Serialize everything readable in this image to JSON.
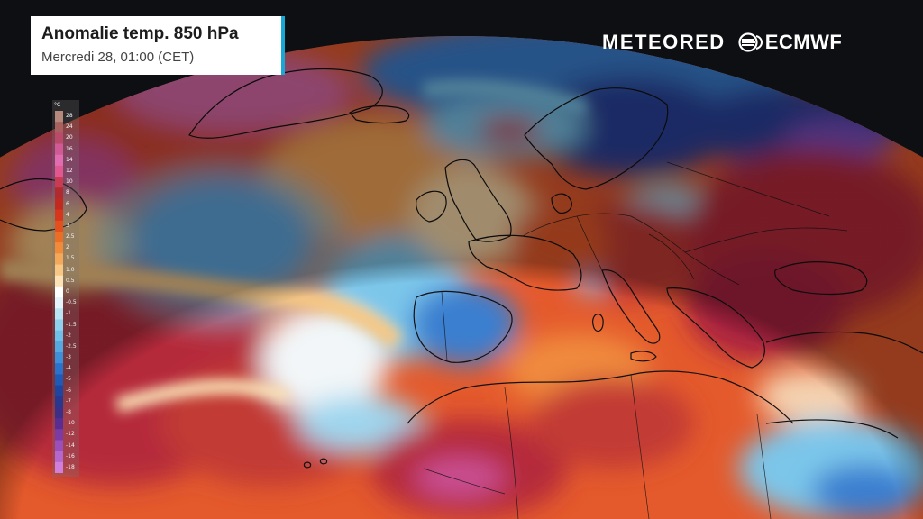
{
  "header": {
    "title": "Anomalie temp. 850 hPa",
    "subtitle": "Mercredi 28, 01:00 (CET)"
  },
  "branding": {
    "meteored": "METEORED",
    "ecmwf": "ECMWF",
    "ecmwf_icon": "ecmwf-swirl-icon"
  },
  "legend": {
    "unit": "°C",
    "ticks": [
      "28",
      "24",
      "20",
      "16",
      "14",
      "12",
      "10",
      "8",
      "6",
      "4",
      "3",
      "2.5",
      "2",
      "1.5",
      "1.0",
      "0.5",
      "0",
      "-0.5",
      "-1",
      "-1.5",
      "-2",
      "-2.5",
      "-3",
      "-4",
      "-5",
      "-6",
      "-7",
      "-8",
      "-10",
      "-12",
      "-14",
      "-16",
      "-18"
    ],
    "colors": [
      "#b58a7c",
      "#a8615f",
      "#b94a6a",
      "#d15a96",
      "#e26cb0",
      "#e1578f",
      "#c93a53",
      "#b02a2e",
      "#c22a20",
      "#d6371c",
      "#e4501d",
      "#ec6e24",
      "#f18b3a",
      "#f4a95a",
      "#f7c783",
      "#fbe3b7",
      "#ffffff",
      "#e4f4fa",
      "#b8e4f3",
      "#8ed1ee",
      "#6fc0e8",
      "#56a9e0",
      "#3d8fd7",
      "#2a73cc",
      "#1f5bb6",
      "#1e45a0",
      "#27388e",
      "#3c2f88",
      "#5a2d92",
      "#7b3aa4",
      "#9a4fbb",
      "#b467cd",
      "#d17fdd"
    ]
  },
  "map": {
    "projection": "globe view centered on the North Atlantic and Europe",
    "colors": {
      "space": "#0e0f12",
      "strong_warm": "#b5293a",
      "warm": "#e45a2c",
      "mild_warm": "#f4a457",
      "neutral": "#ffffff",
      "cool": "#7cc6ea",
      "cold": "#3a7fd0",
      "very_cold": "#2a3f9a",
      "extreme_cold": "#7a4fc2",
      "extreme_warm": "#d96aa8",
      "coastline": "#111111"
    }
  }
}
